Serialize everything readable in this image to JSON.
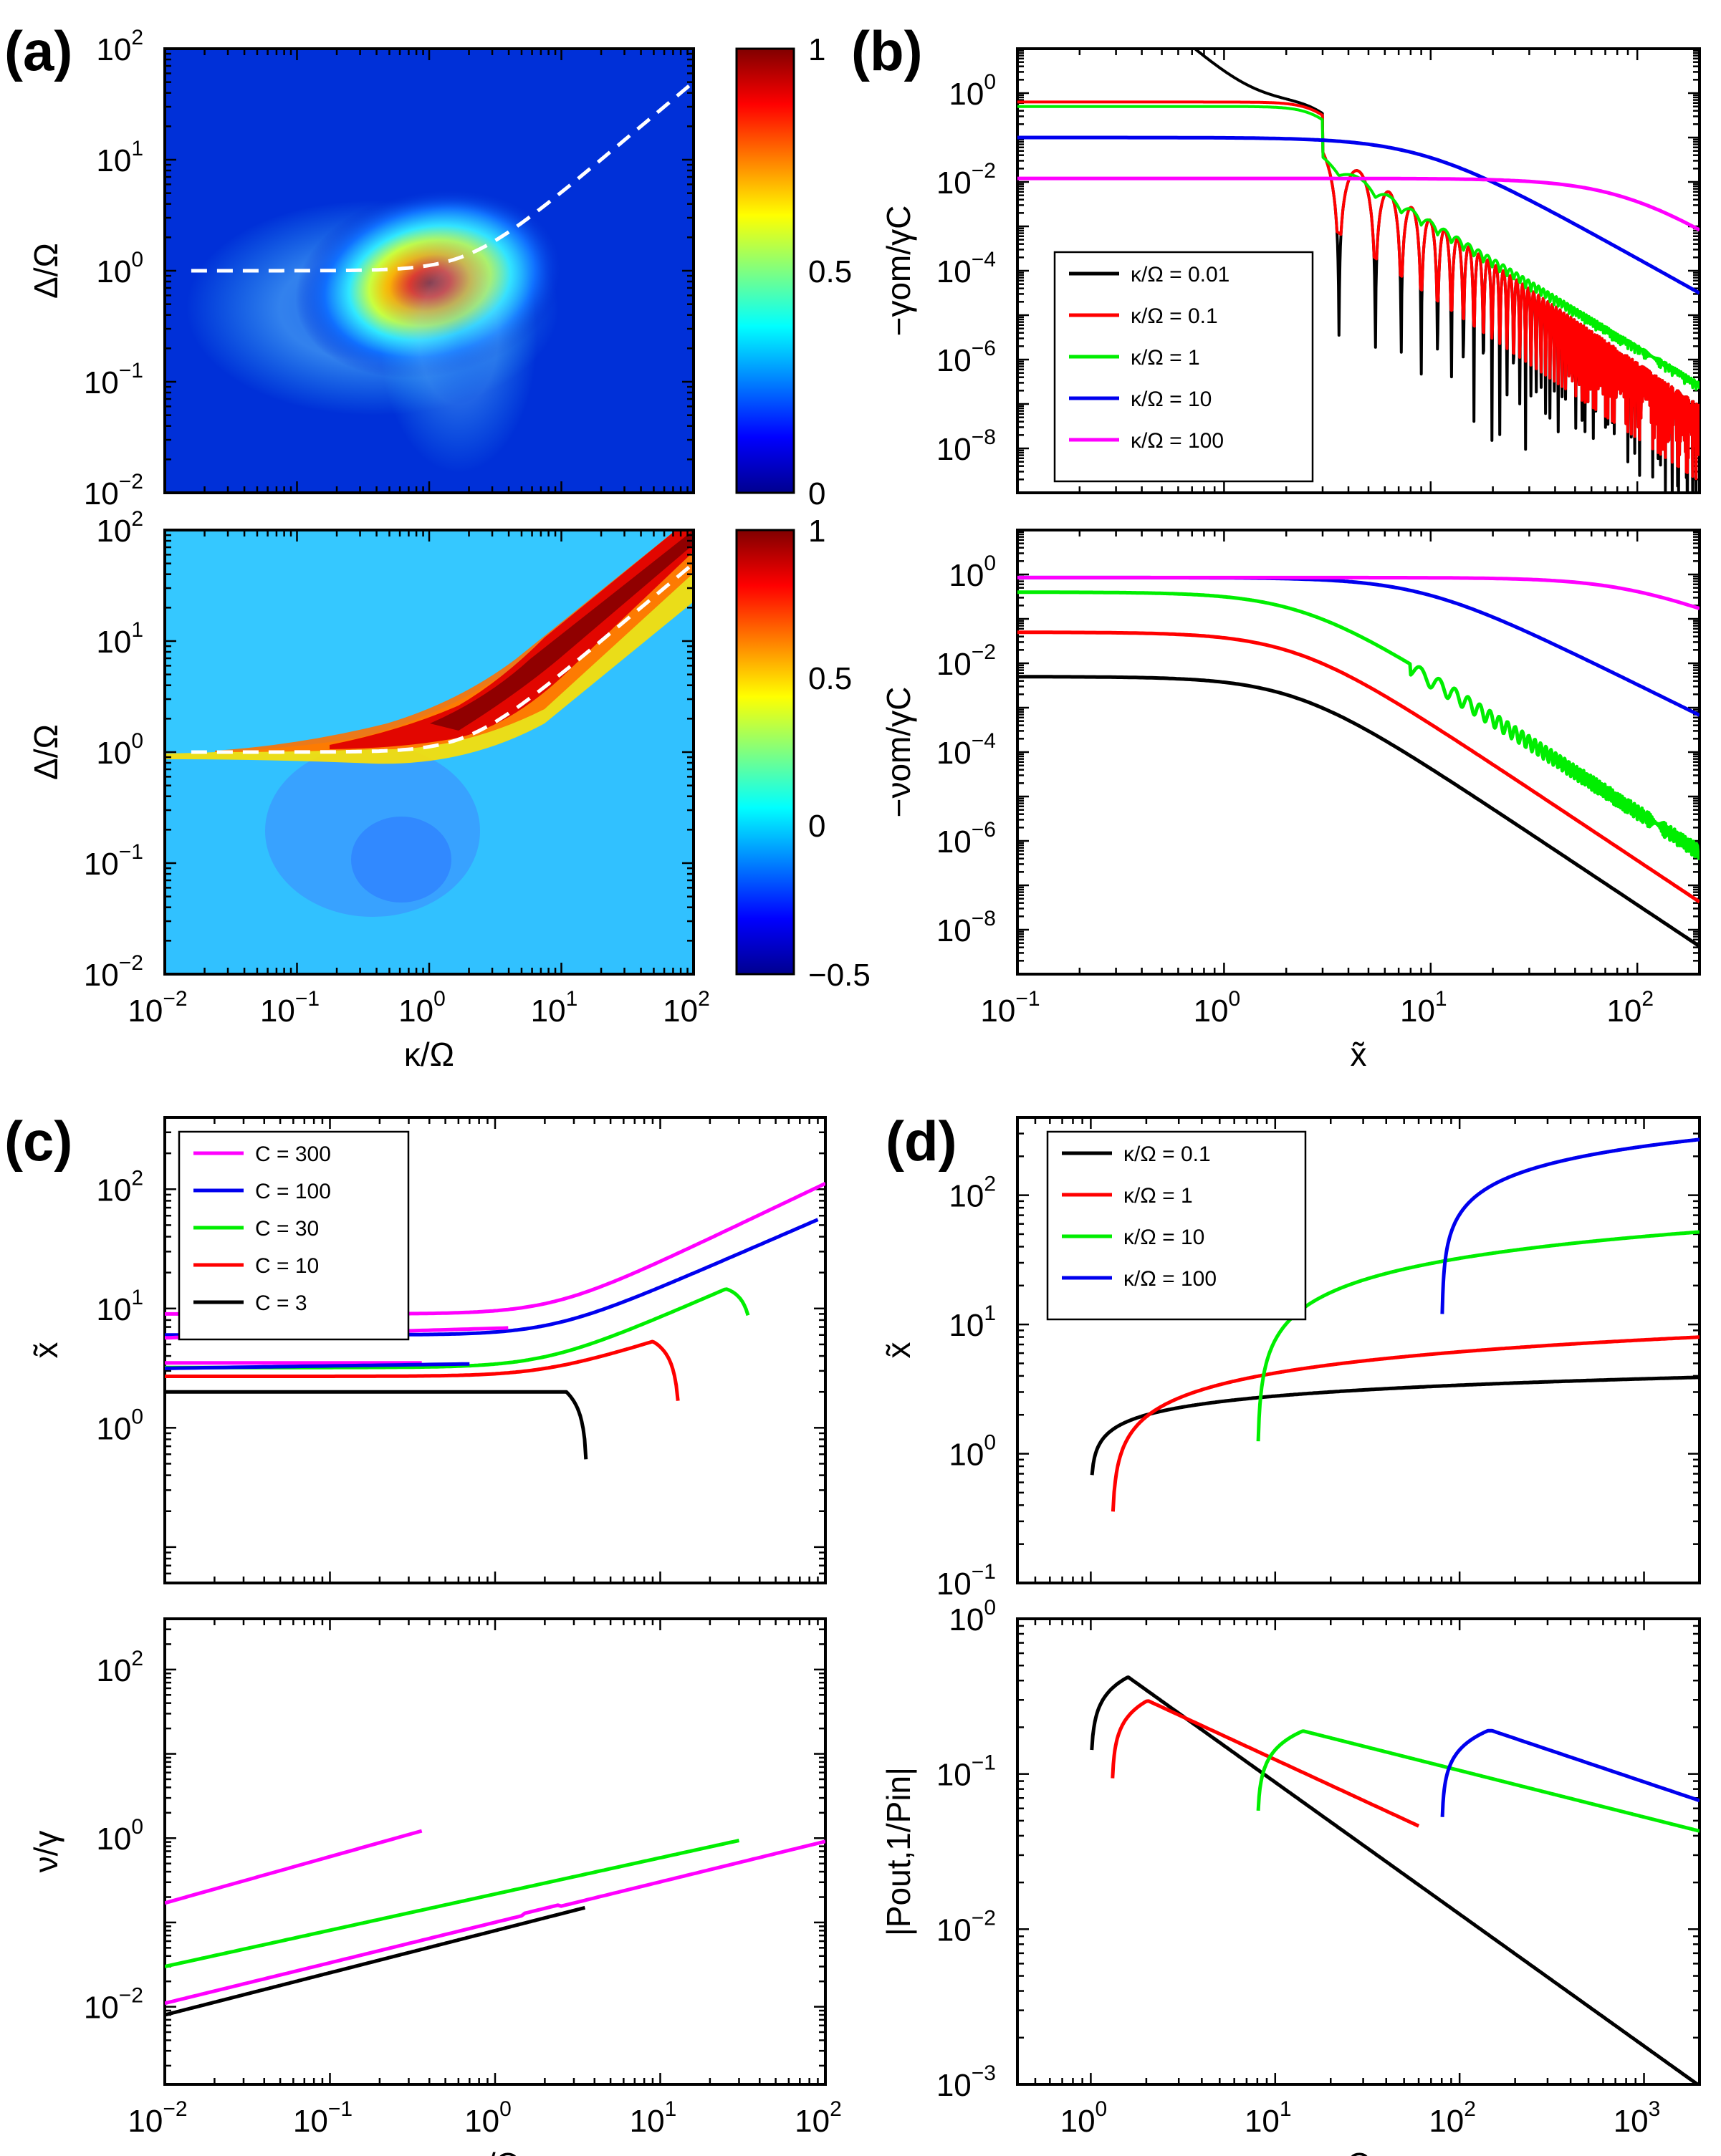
{
  "panel_labels": {
    "a": "(a)",
    "b": "(b)",
    "c": "(c)",
    "d": "(d)"
  },
  "colors": {
    "black": "#000000",
    "red": "#ff0000",
    "green": "#00ee00",
    "blue": "#0000ee",
    "magenta": "#ff00ff",
    "dashed": "#ffffff"
  },
  "chart_data": [
    {
      "id": "a_top",
      "type": "heatmap",
      "xlabel": "",
      "ylabel": "Δ/Ω",
      "xlim": [
        0.01,
        100
      ],
      "ylim": [
        0.01,
        100
      ],
      "xscale": "log",
      "yscale": "log",
      "xticks": [],
      "yticks": [
        "10^2",
        "10^1",
        "10^0",
        "10^-1",
        "10^-2"
      ],
      "colorbar": {
        "min": 0,
        "max": 1,
        "ticks": [
          "1",
          "0.5",
          "0"
        ],
        "colormap": "jet"
      },
      "features": {
        "peak": {
          "x": 0.6,
          "y": 1.0,
          "value": 1.0
        },
        "dashed_curve": "Δ/Ω = sqrt(1 + (κ/2Ω)^2)"
      }
    },
    {
      "id": "a_bottom",
      "type": "heatmap",
      "xlabel": "κ/Ω",
      "ylabel": "Δ/Ω",
      "xlim": [
        0.01,
        100
      ],
      "ylim": [
        0.01,
        100
      ],
      "xscale": "log",
      "yscale": "log",
      "xticks": [
        "10^-2",
        "10^-1",
        "10^0",
        "10^1",
        "10^2"
      ],
      "yticks": [
        "10^2",
        "10^1",
        "10^0",
        "10^-1",
        "10^-2"
      ],
      "colorbar": {
        "min": -0.5,
        "max": 1,
        "ticks": [
          "1",
          "0.5",
          "0",
          "−0.5"
        ],
        "colormap": "jet"
      },
      "features": {
        "ridge": "along dashed curve, max 1",
        "minimum": {
          "x": 0.5,
          "y": 0.3,
          "value": 0
        },
        "dashed_curve": "Δ/Ω = sqrt(1 + (κ/2Ω)^2)"
      }
    },
    {
      "id": "b_top",
      "type": "line",
      "xlabel": "",
      "ylabel": "−γom/γC",
      "xlim": [
        0.1,
        200
      ],
      "ylim": [
        1e-09,
        10
      ],
      "xscale": "log",
      "yscale": "log",
      "xticks": [],
      "yticks": [
        "10^0",
        "10^-2",
        "10^-4",
        "10^-6",
        "10^-8"
      ],
      "legend": {
        "placement": "bottom-left"
      },
      "series": [
        {
          "name": "κ/Ω = 0.01",
          "color": "black",
          "plateau": 0.63,
          "knee": 2.6,
          "oscillating": true
        },
        {
          "name": "κ/Ω = 0.1",
          "color": "red",
          "plateau": 0.63,
          "knee": 2.6,
          "oscillating": true
        },
        {
          "name": "κ/Ω = 1",
          "color": "green",
          "plateau": 0.5,
          "knee": 2.6,
          "oscillating": false
        },
        {
          "name": "κ/Ω = 10",
          "color": "blue",
          "plateau": 0.1,
          "knee": 10,
          "end": 7e-06
        },
        {
          "name": "κ/Ω = 100",
          "color": "magenta",
          "plateau": 0.012,
          "knee": 100,
          "end": 0.0009
        }
      ]
    },
    {
      "id": "b_bottom",
      "type": "line",
      "xlabel": "x̃",
      "ylabel": "−νom/γC",
      "xlim": [
        0.1,
        200
      ],
      "ylim": [
        1e-09,
        10
      ],
      "xscale": "log",
      "yscale": "log",
      "xticks": [
        "10^-1",
        "10^0",
        "10^1",
        "10^2"
      ],
      "yticks": [
        "10^0",
        "10^-2",
        "10^-4",
        "10^-6",
        "10^-8"
      ],
      "series": [
        {
          "name": "κ/Ω = 0.01",
          "color": "black",
          "plateau": 0.005,
          "end": 3e-09
        },
        {
          "name": "κ/Ω = 0.1",
          "color": "red",
          "plateau": 0.05,
          "end": 3e-08
        },
        {
          "name": "κ/Ω = 1",
          "color": "green",
          "plateau": 0.4,
          "end": 5e-07
        },
        {
          "name": "κ/Ω = 10",
          "color": "blue",
          "plateau": 0.85,
          "end": 0.0015
        },
        {
          "name": "κ/Ω = 100",
          "color": "magenta",
          "plateau": 0.85,
          "end": 0.12
        }
      ]
    },
    {
      "id": "c_top",
      "type": "line",
      "xlabel": "",
      "ylabel": "x̃",
      "xlim": [
        0.01,
        100
      ],
      "ylim": [
        0.05,
        400
      ],
      "xscale": "log",
      "yscale": "log",
      "xticks": [],
      "yticks": [
        "10^2",
        "10^1",
        "10^0"
      ],
      "legend": {
        "placement": "top-left"
      },
      "series": [
        {
          "name": "C = 300",
          "color": "magenta",
          "plateau": 9,
          "end": [
            100,
            130
          ]
        },
        {
          "name": "C = 100",
          "color": "blue",
          "plateau": 6,
          "end": [
            90,
            62
          ]
        },
        {
          "name": "C = 30",
          "color": "green",
          "plateau": 3.2,
          "peak": [
            25,
            19
          ]
        },
        {
          "name": "C = 10",
          "color": "red",
          "plateau": 2.7,
          "peak": [
            9,
            6.5
          ]
        },
        {
          "name": "C = 3",
          "color": "black",
          "plateau": 2.0,
          "end": [
            3.5,
            0.95
          ]
        }
      ]
    },
    {
      "id": "c_bottom",
      "type": "line",
      "xlabel": "κ/Ω",
      "ylabel": "ν/γ",
      "xlim": [
        0.01,
        100
      ],
      "ylim": [
        0.0012,
        400
      ],
      "xscale": "log",
      "yscale": "log",
      "xticks": [
        "10^-2",
        "10^-1",
        "10^0",
        "10^1",
        "10^2"
      ],
      "yticks": [
        "10^2",
        "10^0",
        "10^-2"
      ],
      "series": [
        {
          "name": "C = 300",
          "color": "magenta",
          "range": [
            [
              0.01,
              0.17
            ],
            [
              0.35,
              4.0
            ]
          ]
        },
        {
          "name": "C = 300",
          "color": "magenta",
          "range": [
            [
              0.01,
              0.011
            ],
            [
              100,
              85
            ]
          ]
        },
        {
          "name": "C = 30",
          "color": "green",
          "range": [
            [
              0.01,
              0.03
            ],
            [
              30,
              25
            ]
          ]
        },
        {
          "name": "C = 3",
          "color": "black",
          "range": [
            [
              0.01,
              0.008
            ],
            [
              3.5,
              2.3
            ]
          ]
        }
      ]
    },
    {
      "id": "d_top",
      "type": "line",
      "xlabel": "",
      "ylabel": "x̃",
      "xlim": [
        0.4,
        2000
      ],
      "ylim": [
        0.1,
        400
      ],
      "xscale": "log",
      "yscale": "log",
      "xticks": [],
      "yticks": [
        "10^2",
        "10^1",
        "10^0",
        "10^-1"
      ],
      "legend": {
        "placement": "top-left"
      },
      "series": [
        {
          "name": "κ/Ω = 0.1",
          "color": "black",
          "onset": 1.0,
          "end": 3.8
        },
        {
          "name": "κ/Ω = 1",
          "color": "red",
          "onset": 1.3,
          "end": 7
        },
        {
          "name": "κ/Ω = 10",
          "color": "green",
          "onset": 8,
          "end": 50
        },
        {
          "name": "κ/Ω = 100",
          "color": "blue",
          "onset": 80,
          "end": 260
        }
      ]
    },
    {
      "id": "d_bottom",
      "type": "line",
      "xlabel": "C",
      "ylabel": "|Pout,1/Pin|",
      "xlim": [
        0.4,
        2000
      ],
      "ylim": [
        0.001,
        1
      ],
      "xscale": "log",
      "yscale": "log",
      "xticks": [
        "10^0",
        "10^1",
        "10^2",
        "10^3"
      ],
      "yticks": [
        "10^0",
        "10^-1",
        "10^-2",
        "10^-3"
      ],
      "series": [
        {
          "name": "κ/Ω = 0.1",
          "color": "black",
          "onset": 1.0,
          "peak": [
            1.6,
            0.42
          ]
        },
        {
          "name": "κ/Ω = 1",
          "color": "red",
          "onset": 1.3,
          "peak": [
            2.0,
            0.3
          ]
        },
        {
          "name": "κ/Ω = 10",
          "color": "green",
          "onset": 8,
          "peak": [
            14,
            0.19
          ]
        },
        {
          "name": "κ/Ω = 100",
          "color": "blue",
          "onset": 80,
          "peak": [
            150,
            0.19
          ]
        }
      ]
    }
  ]
}
